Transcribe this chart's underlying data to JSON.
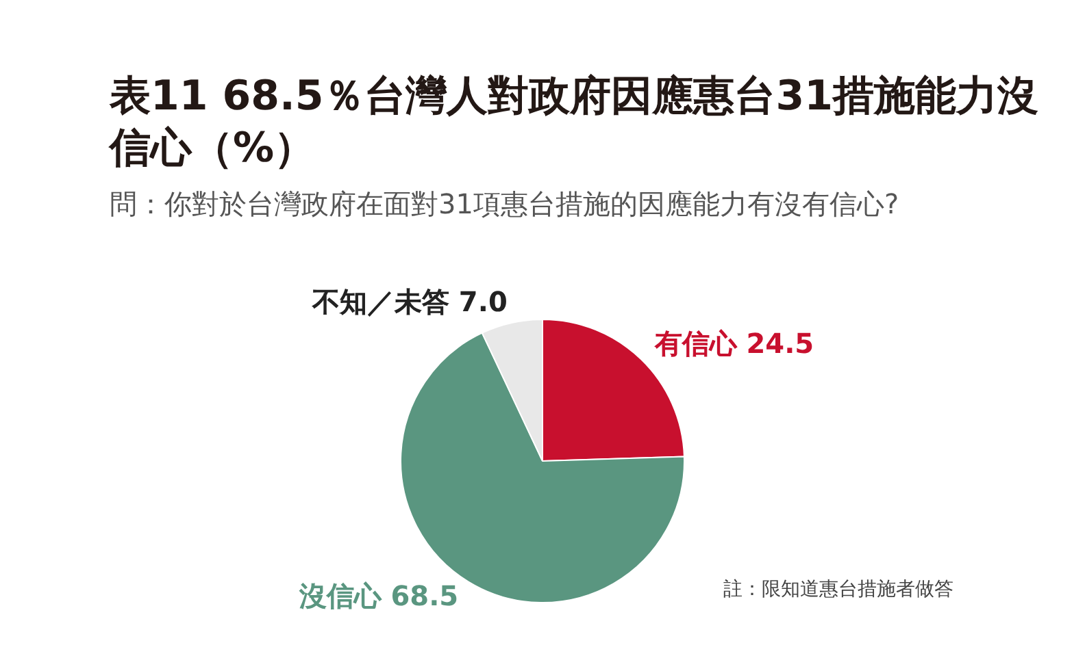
{
  "chart_data": {
    "type": "pie",
    "title": "表11 68.5％台灣人對政府因應惠台31措施能力沒信心（%）",
    "subtitle": "問：你對於台灣政府在面對31項惠台措施的因應能力有沒有信心?",
    "categories": [
      "有信心",
      "沒信心",
      "不知／未答"
    ],
    "values": [
      24.5,
      68.5,
      7.0
    ],
    "value_labels": [
      "24.5",
      "68.5",
      "7.0"
    ],
    "colors": [
      "#c8102e",
      "#5a9680",
      "#e8e8e8"
    ],
    "annotations": [
      "註：限知道惠台措施者做答"
    ]
  }
}
